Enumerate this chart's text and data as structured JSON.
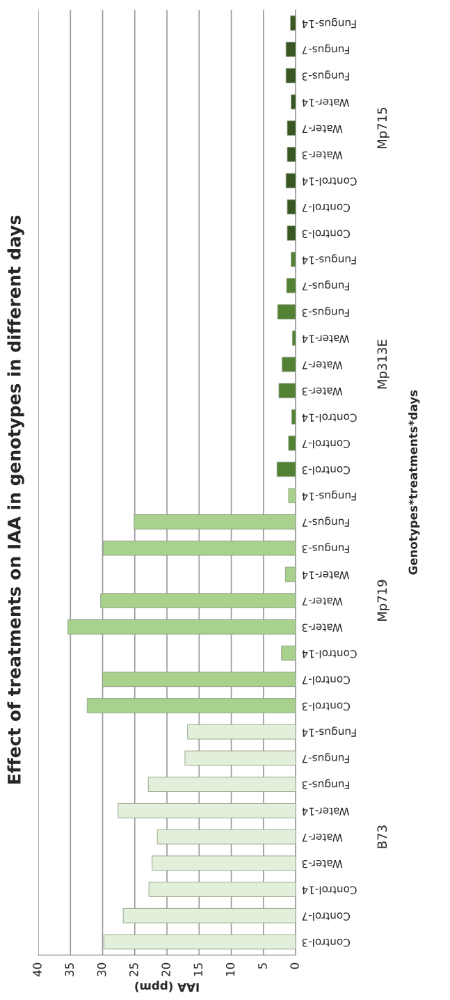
{
  "chart_data": {
    "type": "bar",
    "orientation": "horizontal",
    "title": "Effect of treatments on IAA in genotypes in different days",
    "xlabel": "IAA (ppm)",
    "ylabel": "Genotypes*treatments*days",
    "categories": [
      "Fungus-14",
      "Fungus-7",
      "Fungus-3",
      "Water-14",
      "Water-7",
      "Water-3",
      "Control-14",
      "Control-7",
      "Control-3",
      "Fungus-14",
      "Fungus-7",
      "Fungus-3",
      "Water-14",
      "Water-7",
      "Water-3",
      "Control-14",
      "Control-7",
      "Control-3",
      "Fungus-14",
      "Fungus-7",
      "Fungus-3",
      "Water-14",
      "Water-7",
      "Water-3",
      "Control-14",
      "Control-7",
      "Control-3",
      "Fungus-14",
      "Fungus-7",
      "Fungus-3",
      "Water-14",
      "Water-7",
      "Water-3",
      "Control-14",
      "Control-7",
      "Control-3"
    ],
    "values": [
      0.8,
      1.5,
      1.5,
      0.7,
      1.3,
      1.3,
      1.5,
      1.3,
      1.3,
      0.7,
      1.4,
      2.8,
      0.5,
      2.1,
      2.6,
      0.6,
      1.1,
      2.9,
      1.1,
      25.1,
      29.9,
      1.6,
      30.3,
      35.4,
      2.2,
      30.0,
      32.4,
      16.8,
      17.2,
      22.9,
      27.6,
      21.5,
      22.3,
      22.8,
      26.8,
      29.8
    ],
    "colors": [
      "#385723",
      "#385723",
      "#385723",
      "#385723",
      "#385723",
      "#385723",
      "#385723",
      "#385723",
      "#385723",
      "#548235",
      "#548235",
      "#548235",
      "#548235",
      "#548235",
      "#548235",
      "#548235",
      "#548235",
      "#548235",
      "#a9d18e",
      "#a9d18e",
      "#a9d18e",
      "#a9d18e",
      "#a9d18e",
      "#a9d18e",
      "#a9d18e",
      "#a9d18e",
      "#a9d18e",
      "#e2efda",
      "#e2efda",
      "#e2efda",
      "#e2efda",
      "#e2efda",
      "#e2efda",
      "#e2efda",
      "#e2efda",
      "#e2efda"
    ],
    "annotations": [
      "Mp715",
      "Mp313E",
      "Mp719",
      "B73"
    ],
    "xlim": [
      40,
      0
    ],
    "xticks": [
      0,
      5,
      10,
      15,
      20,
      25,
      30,
      35,
      40
    ],
    "grid": "x",
    "legend": false
  }
}
